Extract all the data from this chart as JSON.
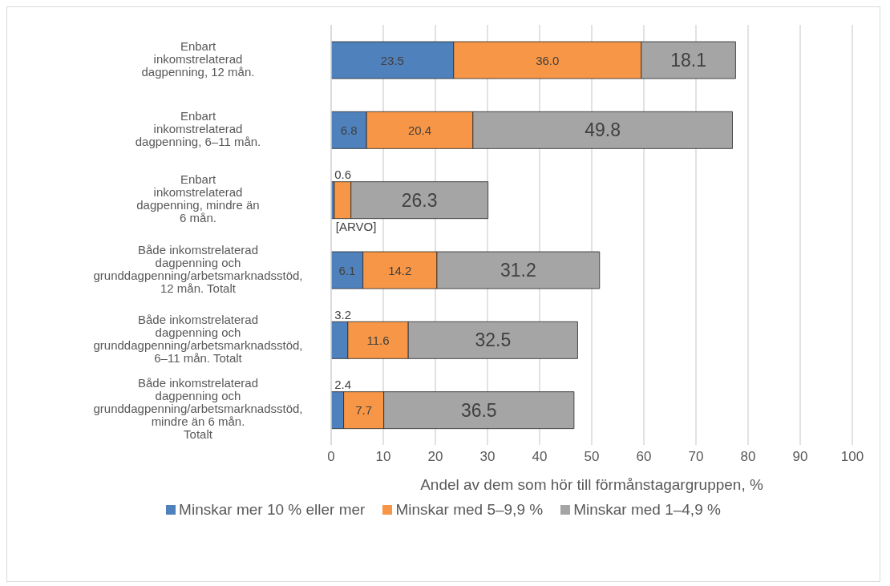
{
  "chart_data": {
    "type": "bar",
    "orientation": "horizontal",
    "stacked": true,
    "categories": [
      "Enbart inkomstrelaterad dagpenning, 12 mån.",
      "Enbart inkomstrelaterad dagpenning, 6–11 mån.",
      "Enbart inkomstrelaterad dagpenning, mindre än 6 mån.",
      "Både inkomstrelaterad dagpenning och grunddagpenning/arbetsmarknadsstöd, 12 mån. Totalt",
      "Både inkomstrelaterad dagpenning och grunddagpenning/arbetsmarknadsstöd, 6–11 mån. Totalt",
      "Både inkomstrelaterad dagpenning och grunddagpenning/arbetsmarknadsstöd, mindre än 6 mån. Totalt"
    ],
    "series": [
      {
        "name": "Minskar mer 10 % eller mer",
        "color": "#4f81bd",
        "values": [
          23.5,
          6.8,
          0.6,
          6.1,
          3.2,
          2.4
        ],
        "value_labels": [
          "23.5",
          "6.8",
          "0.6",
          "6.1",
          "3.2",
          "2.4"
        ]
      },
      {
        "name": "Minskar med 5–9,9 %",
        "color": "#f79646",
        "values": [
          36.0,
          20.4,
          3.2,
          14.2,
          11.6,
          7.7
        ],
        "value_labels": [
          "36.0",
          "20.4",
          "[ARVO]",
          "14.2",
          "11.6",
          "7.7"
        ]
      },
      {
        "name": "Minskar med 1–4,9 %",
        "color": "#a5a5a5",
        "values": [
          18.1,
          49.8,
          26.3,
          31.2,
          32.5,
          36.5
        ],
        "value_labels": [
          "18.1",
          "49.8",
          "26.3",
          "31.2",
          "32.5",
          "36.5"
        ]
      }
    ],
    "xlabel": "Andel av dem som hör till förmånstagargruppen, %",
    "xlim": [
      0,
      100
    ],
    "xticks": [
      0,
      10,
      20,
      30,
      40,
      50,
      60,
      70,
      80,
      90,
      100
    ],
    "grid": "x",
    "legend": "bottom"
  }
}
